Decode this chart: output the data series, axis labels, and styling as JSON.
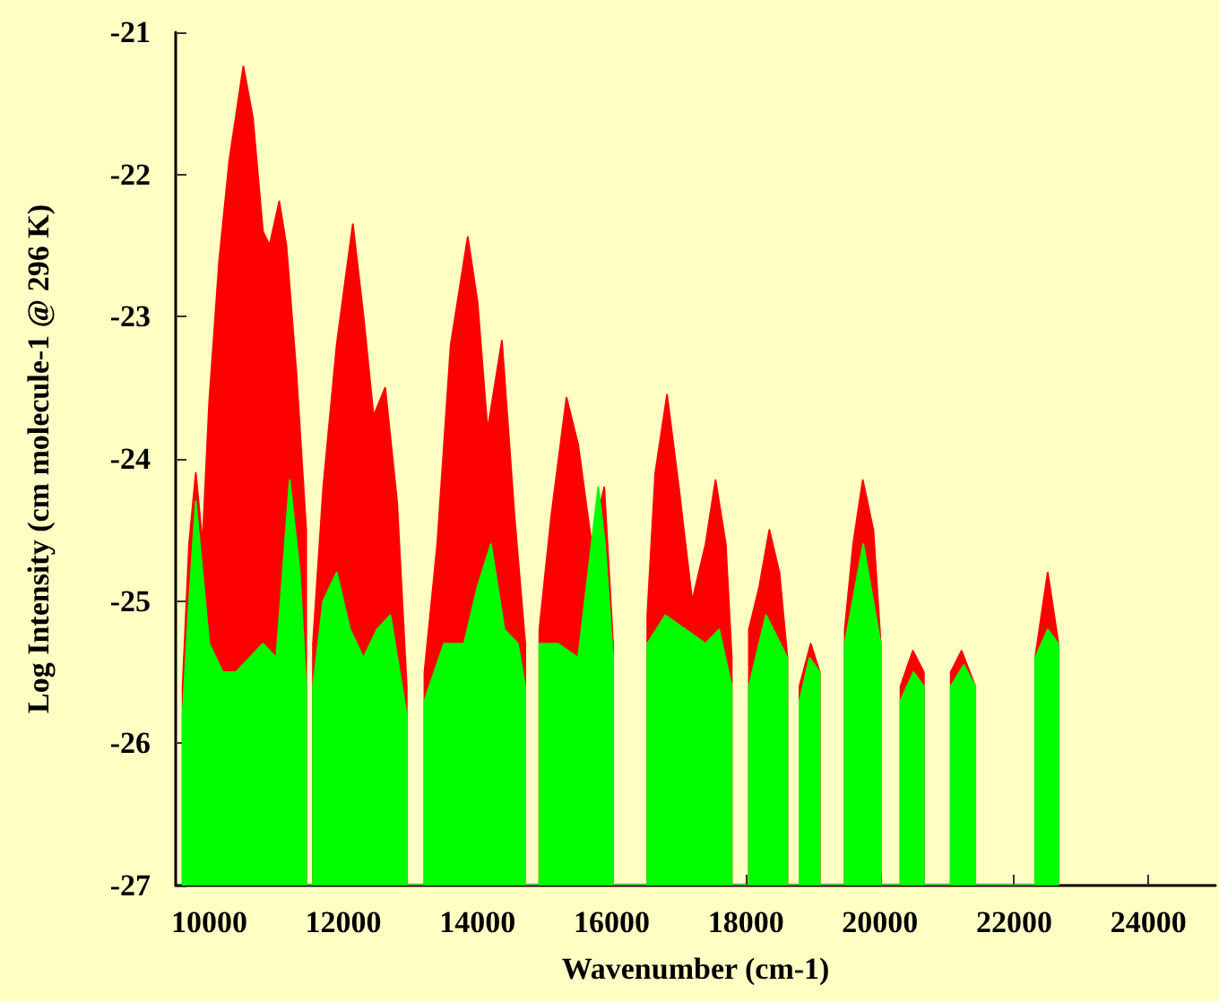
{
  "chart_data": {
    "type": "area",
    "xlabel": "Wavenumber (cm-1)",
    "ylabel": "Log Intensity (cm molecule-1 @ 296 K)",
    "xlim": [
      9500,
      25000
    ],
    "ylim": [
      -27,
      -21
    ],
    "xticks": [
      10000,
      12000,
      14000,
      16000,
      18000,
      20000,
      22000,
      24000
    ],
    "yticks": [
      -27,
      -26,
      -25,
      -24,
      -23,
      -22,
      -21
    ],
    "grid": false,
    "series": [
      {
        "color": "#ff0000",
        "x": [
          9604,
          9604,
          9700,
          9800,
          9900,
          10000,
          10150,
          10300,
          10509,
          10650,
          10800,
          10900,
          11044,
          11150,
          11300,
          11445,
          11445,
          11547,
          11547,
          11700,
          11900,
          12141,
          12300,
          12450,
          12623,
          12800,
          12944,
          12944,
          13209,
          13209,
          13400,
          13600,
          13854,
          14000,
          14150,
          14363,
          14550,
          14711,
          14711,
          14922,
          14922,
          15100,
          15326,
          15500,
          15700,
          15889,
          16020,
          16020,
          16531,
          16531,
          16650,
          16825,
          17000,
          17200,
          17400,
          17548,
          17700,
          17789,
          17789,
          18046,
          18046,
          18200,
          18350,
          18500,
          18619,
          18619,
          18800,
          18800,
          18967,
          19101,
          19101,
          19475,
          19475,
          19600,
          19743,
          19900,
          20010,
          20010,
          20306,
          20306,
          20490,
          20653,
          20653,
          21055,
          21055,
          21215,
          21420,
          21420,
          22313,
          22313,
          22500,
          22660,
          22660
        ],
        "values": [
          -27,
          -25.6,
          -24.6,
          -24.1,
          -24.6,
          -23.6,
          -22.6,
          -21.9,
          -21.24,
          -21.6,
          -22.4,
          -22.5,
          -22.19,
          -22.5,
          -23.4,
          -24.5,
          -27,
          -27,
          -25.3,
          -24.2,
          -23.2,
          -22.35,
          -23.0,
          -23.7,
          -23.5,
          -24.3,
          -25.6,
          -27,
          -27,
          -25.5,
          -24.6,
          -23.2,
          -22.44,
          -22.9,
          -23.8,
          -23.17,
          -24.4,
          -25.3,
          -27,
          -27,
          -25.2,
          -24.4,
          -23.57,
          -23.9,
          -24.6,
          -24.2,
          -25.3,
          -27,
          -27,
          -25.1,
          -24.1,
          -23.55,
          -24.2,
          -25.0,
          -24.6,
          -24.15,
          -24.6,
          -25.4,
          -27,
          -27,
          -25.2,
          -24.9,
          -24.5,
          -24.8,
          -25.4,
          -27,
          -27,
          -25.6,
          -25.3,
          -25.5,
          -27,
          -27,
          -25.2,
          -24.6,
          -24.15,
          -24.5,
          -25.3,
          -27,
          -27,
          -25.6,
          -25.35,
          -25.5,
          -27,
          -27,
          -25.5,
          -25.35,
          -25.6,
          -27,
          -27,
          -25.4,
          -24.8,
          -25.3,
          -27
        ]
      },
      {
        "color": "#00ff00",
        "x": [
          9604,
          9604,
          9700,
          9800,
          9900,
          10000,
          10200,
          10400,
          10600,
          10800,
          11000,
          11200,
          11350,
          11445,
          11445,
          11547,
          11547,
          11700,
          11900,
          12100,
          12300,
          12500,
          12700,
          12944,
          12944,
          13209,
          13209,
          13500,
          13800,
          14000,
          14200,
          14400,
          14600,
          14711,
          14711,
          14922,
          14922,
          15200,
          15500,
          15800,
          15900,
          16020,
          16020,
          16531,
          16531,
          16800,
          17100,
          17400,
          17600,
          17789,
          17789,
          18046,
          18046,
          18300,
          18619,
          18619,
          18800,
          18800,
          18950,
          19101,
          19101,
          19475,
          19475,
          19750,
          20010,
          20010,
          20306,
          20306,
          20500,
          20653,
          20653,
          21055,
          21055,
          21250,
          21420,
          21420,
          22313,
          22313,
          22500,
          22660,
          22660
        ],
        "values": [
          -27,
          -25.8,
          -25.0,
          -24.3,
          -24.8,
          -25.3,
          -25.5,
          -25.5,
          -25.4,
          -25.3,
          -25.4,
          -24.15,
          -24.8,
          -25.6,
          -27,
          -27,
          -25.6,
          -25.0,
          -24.8,
          -25.2,
          -25.4,
          -25.2,
          -25.1,
          -25.8,
          -27,
          -27,
          -25.7,
          -25.3,
          -25.3,
          -24.9,
          -24.6,
          -25.2,
          -25.3,
          -25.6,
          -27,
          -27,
          -25.3,
          -25.3,
          -25.4,
          -24.2,
          -24.6,
          -25.4,
          -27,
          -27,
          -25.3,
          -25.1,
          -25.2,
          -25.3,
          -25.2,
          -25.6,
          -27,
          -27,
          -25.6,
          -25.1,
          -25.4,
          -27,
          -27,
          -25.7,
          -25.4,
          -25.5,
          -27,
          -27,
          -25.3,
          -24.6,
          -25.3,
          -27,
          -27,
          -25.7,
          -25.5,
          -25.6,
          -27,
          -27,
          -25.6,
          -25.45,
          -25.6,
          -27,
          -27,
          -25.4,
          -25.2,
          -25.3,
          -27
        ]
      }
    ]
  }
}
